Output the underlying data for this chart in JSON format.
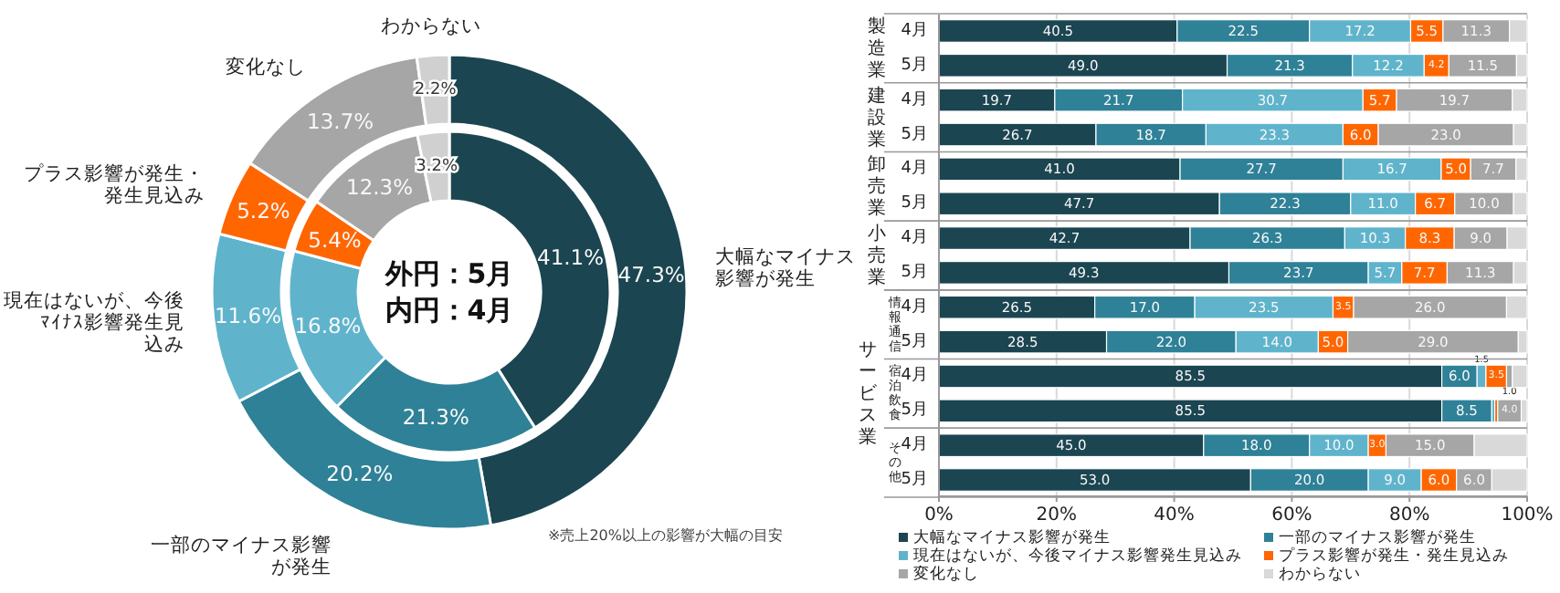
{
  "chart_data": [
    {
      "type": "donut",
      "categories": [
        "大幅なマイナス影響が発生",
        "一部のマイナス影響が発生",
        "現在はないが、今後ﾏｲﾅｽ影響発生見込み",
        "プラス影響が発生・発生見込み",
        "変化なし",
        "わからない"
      ],
      "colors": [
        "#1b4551",
        "#2e8197",
        "#5fb4cc",
        "#ff6600",
        "#a6a6a6",
        "#d0d0d0"
      ],
      "series": [
        {
          "values": [
            47.3,
            20.2,
            11.6,
            5.2,
            13.7,
            2.2
          ],
          "value_labels": [
            "47.3%",
            "20.2%",
            "11.6%",
            "5.2%",
            "13.7%",
            "2.2%"
          ]
        },
        {
          "values": [
            41.1,
            21.3,
            16.8,
            5.4,
            12.3,
            3.2
          ],
          "value_labels": [
            "41.1%",
            "21.3%",
            "16.8%",
            "5.4%",
            "12.3%",
            "3.2%"
          ]
        }
      ],
      "annotations": [
        "外円：5月",
        "内円：4月",
        "※売上20%以上の影響が大幅の目安"
      ]
    },
    {
      "type": "bar",
      "orientation": "horizontal",
      "stacked": true,
      "categories": [
        "4月",
        "5月",
        "4月",
        "5月",
        "4月",
        "5月",
        "4月",
        "5月",
        "4月",
        "5月",
        "4月",
        "5月",
        "4月",
        "5月"
      ],
      "series": [
        {
          "name": "大幅なマイナス影響が発生",
          "color": "#1b4551",
          "values": [
            40.5,
            49.0,
            19.7,
            26.7,
            41.0,
            47.7,
            42.7,
            49.3,
            26.5,
            28.5,
            85.5,
            85.5,
            45.0,
            53.0
          ],
          "value_labels": [
            "40.5",
            "49.0",
            "19.7",
            "26.7",
            "41.0",
            "47.7",
            "42.7",
            "49.3",
            "26.5",
            "28.5",
            "85.5",
            "85.5",
            "45.0",
            "53.0"
          ]
        },
        {
          "name": "一部のマイナス影響が発生",
          "color": "#2e8197",
          "values": [
            22.5,
            21.3,
            21.7,
            18.7,
            27.7,
            22.3,
            26.3,
            23.7,
            17.0,
            22.0,
            6.0,
            8.5,
            18.0,
            20.0
          ],
          "value_labels": [
            "22.5",
            "21.3",
            "21.7",
            "18.7",
            "27.7",
            "22.3",
            "26.3",
            "23.7",
            "17.0",
            "22.0",
            "6.0",
            "8.5",
            "18.0",
            "20.0"
          ]
        },
        {
          "name": "現在はないが、今後マイナス影響発生見込み",
          "color": "#5fb4cc",
          "values": [
            17.2,
            12.2,
            30.7,
            23.3,
            16.7,
            11.0,
            10.3,
            5.7,
            23.5,
            14.0,
            1.5,
            0.5,
            10.0,
            9.0
          ],
          "value_labels": [
            "17.2",
            "12.2",
            "30.7",
            "23.3",
            "16.7",
            "11.0",
            "10.3",
            "5.7",
            "23.5",
            "14.0",
            "1.5",
            null,
            "10.0",
            "9.0"
          ]
        },
        {
          "name": "プラス影響が発生・発生見込み",
          "color": "#ff6600",
          "values": [
            5.5,
            4.2,
            5.7,
            6.0,
            5.0,
            6.7,
            8.3,
            7.7,
            3.5,
            5.0,
            3.5,
            0.5,
            3.0,
            6.0
          ],
          "value_labels": [
            "5.5",
            "4.2",
            "5.7",
            "6.0",
            "5.0",
            "6.7",
            "8.3",
            "7.7",
            "3.5",
            "5.0",
            "3.5",
            null,
            "3.0",
            "6.0"
          ]
        },
        {
          "name": "変化なし",
          "color": "#a6a6a6",
          "values": [
            11.3,
            11.5,
            19.7,
            23.0,
            7.7,
            10.0,
            9.0,
            11.3,
            26.0,
            29.0,
            1.0,
            4.0,
            15.0,
            6.0
          ],
          "value_labels": [
            "11.3",
            "11.5",
            "19.7",
            "23.0",
            "7.7",
            "10.0",
            "9.0",
            "11.3",
            "26.0",
            "29.0",
            "1.0",
            "4.0",
            "15.0",
            "6.0"
          ]
        },
        {
          "name": "わからない",
          "color": "#d9d9d9",
          "values": [
            3.0,
            1.8,
            2.5,
            2.3,
            1.9,
            2.3,
            3.4,
            2.3,
            3.5,
            1.5,
            2.5,
            1.0,
            9.0,
            6.0
          ]
        }
      ],
      "xlim": [
        0,
        100
      ],
      "xticks": [
        {
          "value": 0,
          "label": "0%"
        },
        {
          "value": 20,
          "label": "20%"
        },
        {
          "value": 40,
          "label": "40%"
        },
        {
          "value": 60,
          "label": "60%"
        },
        {
          "value": 80,
          "label": "80%"
        },
        {
          "value": 100,
          "label": "100%"
        }
      ],
      "grid": "x",
      "legend": "bottom",
      "annotations": [
        "製造業",
        "建設業",
        "卸売業",
        "小売業",
        "サービス業",
        "情報通信",
        "宿泊飲食",
        "その他"
      ]
    }
  ]
}
